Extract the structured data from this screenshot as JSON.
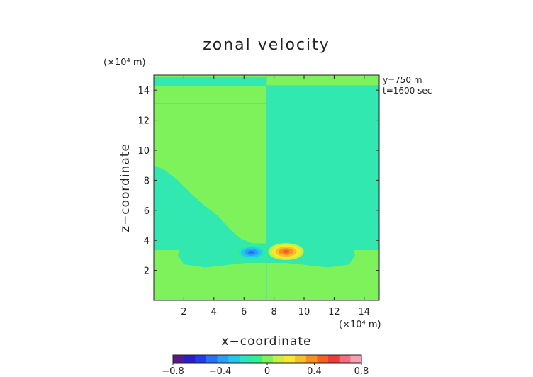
{
  "chart_data": {
    "type": "heatmap",
    "title": "zonal velocity",
    "xlabel": "x−coordinate",
    "ylabel": "z−coordinate",
    "x_unit_label": "(×10⁴ m)",
    "y_unit_label": "(×10⁴ m)",
    "annotations": [
      "y=750 m",
      "t=1600 sec"
    ],
    "xlim": [
      0,
      15
    ],
    "ylim": [
      0,
      15
    ],
    "x_ticks": [
      2,
      4,
      6,
      8,
      10,
      12,
      14
    ],
    "y_ticks": [
      2,
      4,
      6,
      8,
      10,
      12,
      14
    ],
    "colorbar": {
      "range": [
        -0.8,
        0.8
      ],
      "tick_values": [
        -0.8,
        -0.4,
        0,
        0.4,
        0.8
      ],
      "tick_labels": [
        "−0.8",
        "−0.4",
        "0",
        "0.4",
        "0.8"
      ],
      "colors": [
        "#5a1a8c",
        "#2b1ec8",
        "#1f3cf0",
        "#2a70f5",
        "#2aa0f5",
        "#20c8ea",
        "#2ae6c0",
        "#30f090",
        "#7ef25a",
        "#c8f040",
        "#f8e830",
        "#f8c028",
        "#f89020",
        "#f86020",
        "#f03a3a",
        "#f86a80",
        "#f8a0b0"
      ]
    },
    "field": {
      "background": 0.04,
      "regions": [
        {
          "description": "top strip left",
          "x": [
            0,
            7.5
          ],
          "z": [
            14.3,
            14.9
          ],
          "value": 0.0
        },
        {
          "description": "top strip right",
          "x": [
            7.5,
            15
          ],
          "z": [
            13.1,
            14.3
          ],
          "value": 0.0
        },
        {
          "description": "right column lower",
          "x": [
            7.5,
            15
          ],
          "z": [
            0,
            13.1
          ],
          "value": 0.0
        },
        {
          "description": "mid-left bowl",
          "x": [
            0,
            7.5
          ],
          "z": [
            2.2,
            9.0
          ],
          "value": 0.0
        }
      ],
      "extrema": [
        {
          "kind": "min",
          "x": 6.5,
          "z": 3.2,
          "value": -0.5
        },
        {
          "kind": "max",
          "x": 8.8,
          "z": 3.25,
          "value": 0.5
        }
      ]
    }
  }
}
